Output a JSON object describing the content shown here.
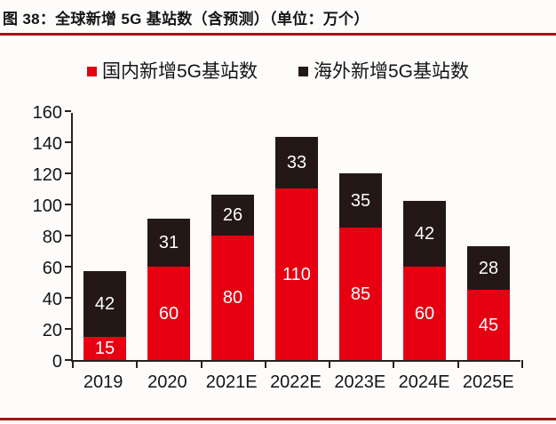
{
  "header": {
    "title": "图 38：全球新增 5G 基站数（含预测）（单位：万个）"
  },
  "colors": {
    "rule": "#a01414",
    "axis": "#262220",
    "domestic": "#e60012",
    "overseas": "#231815",
    "value_label": "#ffffff"
  },
  "chart_data": {
    "type": "bar",
    "stacked": true,
    "title": "全球新增 5G 基站数（含预测）",
    "unit": "万个",
    "categories": [
      "2019",
      "2020",
      "2021E",
      "2022E",
      "2023E",
      "2024E",
      "2025E"
    ],
    "series": [
      {
        "key": "domestic",
        "name": "国内新增5G基站数",
        "color": "#e60012",
        "values": [
          15,
          60,
          80,
          110,
          85,
          60,
          45
        ]
      },
      {
        "key": "overseas",
        "name": "海外新增5G基站数",
        "color": "#231815",
        "values": [
          42,
          31,
          26,
          33,
          35,
          42,
          28
        ]
      }
    ],
    "totals": [
      57,
      91,
      106,
      143,
      120,
      102,
      73
    ],
    "ylim": [
      0,
      160
    ],
    "ytick_step": 20,
    "yticks": [
      0,
      20,
      40,
      60,
      80,
      100,
      120,
      140,
      160
    ],
    "grid": false,
    "legend_position": "top",
    "value_labels": true
  }
}
